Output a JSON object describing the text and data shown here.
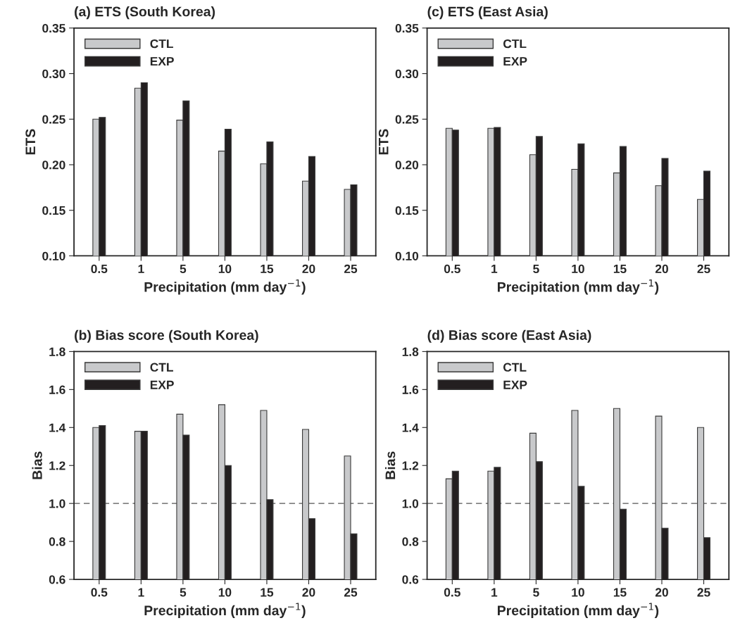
{
  "chart_data": [
    {
      "type": "bar",
      "title": "(a) ETS (South Korea)",
      "xlabel": "Precipitation (mm day$^{−1}$)",
      "ylabel": "ETS",
      "categories": [
        "0.5",
        "1",
        "5",
        "10",
        "15",
        "20",
        "25"
      ],
      "series": [
        {
          "name": "CTL",
          "color": "#c8c9cb",
          "values": [
            0.25,
            0.284,
            0.249,
            0.215,
            0.201,
            0.182,
            0.173
          ]
        },
        {
          "name": "EXP",
          "color": "#231f20",
          "values": [
            0.252,
            0.29,
            0.27,
            0.239,
            0.225,
            0.209,
            0.178
          ]
        }
      ],
      "ylim": [
        0.1,
        0.35
      ],
      "yticks": [
        {
          "value": 0.1,
          "label": "0.10"
        },
        {
          "value": 0.15,
          "label": "0.15"
        },
        {
          "value": 0.2,
          "label": "0.20"
        },
        {
          "value": 0.25,
          "label": "0.25"
        },
        {
          "value": 0.3,
          "label": "0.30"
        },
        {
          "value": 0.35,
          "label": "0.35"
        }
      ],
      "legend": "top left",
      "grid": false
    },
    {
      "type": "bar",
      "title": "(c) ETS (East Asia)",
      "xlabel": "Precipitation (mm day$^{−1}$)",
      "ylabel": "ETS",
      "categories": [
        "0.5",
        "1",
        "5",
        "10",
        "15",
        "20",
        "25"
      ],
      "series": [
        {
          "name": "CTL",
          "color": "#c8c9cb",
          "values": [
            0.24,
            0.24,
            0.211,
            0.195,
            0.191,
            0.177,
            0.162
          ]
        },
        {
          "name": "EXP",
          "color": "#231f20",
          "values": [
            0.238,
            0.241,
            0.231,
            0.223,
            0.22,
            0.207,
            0.193
          ]
        }
      ],
      "ylim": [
        0.1,
        0.35
      ],
      "yticks": [
        {
          "value": 0.1,
          "label": "0.10"
        },
        {
          "value": 0.15,
          "label": "0.15"
        },
        {
          "value": 0.2,
          "label": "0.20"
        },
        {
          "value": 0.25,
          "label": "0.25"
        },
        {
          "value": 0.3,
          "label": "0.30"
        },
        {
          "value": 0.35,
          "label": "0.35"
        }
      ],
      "legend": "top left",
      "grid": false
    },
    {
      "type": "bar",
      "title": "(b) Bias score (South Korea)",
      "xlabel": "Precipitation (mm day$^{−1}$)",
      "ylabel": "Bias",
      "categories": [
        "0.5",
        "1",
        "5",
        "10",
        "15",
        "20",
        "25"
      ],
      "series": [
        {
          "name": "CTL",
          "color": "#c8c9cb",
          "values": [
            1.4,
            1.38,
            1.47,
            1.52,
            1.49,
            1.39,
            1.25
          ]
        },
        {
          "name": "EXP",
          "color": "#231f20",
          "values": [
            1.41,
            1.38,
            1.36,
            1.2,
            1.02,
            0.92,
            0.84
          ]
        }
      ],
      "ylim": [
        0.6,
        1.8
      ],
      "yticks": [
        0.6,
        0.8,
        {
          "value": 1.0,
          "label": "1.0"
        },
        1.2,
        1.4,
        1.6,
        1.8
      ],
      "ref_lines": [
        {
          "axis": "y",
          "value": 1.0,
          "color": "#555555",
          "line_style": "dashed"
        }
      ],
      "legend": "top left",
      "grid": false
    },
    {
      "type": "bar",
      "title": "(d) Bias score (East Asia)",
      "xlabel": "Precipitation (mm day$^{−1}$)",
      "ylabel": "Bias",
      "categories": [
        "0.5",
        "1",
        "5",
        "10",
        "15",
        "20",
        "25"
      ],
      "series": [
        {
          "name": "CTL",
          "color": "#c8c9cb",
          "values": [
            1.13,
            1.17,
            1.37,
            1.49,
            1.5,
            1.46,
            1.4
          ]
        },
        {
          "name": "EXP",
          "color": "#231f20",
          "values": [
            1.17,
            1.19,
            1.22,
            1.09,
            0.97,
            0.87,
            0.82
          ]
        }
      ],
      "ylim": [
        0.6,
        1.8
      ],
      "yticks": [
        0.6,
        0.8,
        {
          "value": 1.0,
          "label": "1.0"
        },
        1.2,
        1.4,
        1.6,
        1.8
      ],
      "ref_lines": [
        {
          "axis": "y",
          "value": 1.0,
          "color": "#555555",
          "line_style": "dashed"
        }
      ],
      "legend": "top left",
      "grid": false
    }
  ]
}
